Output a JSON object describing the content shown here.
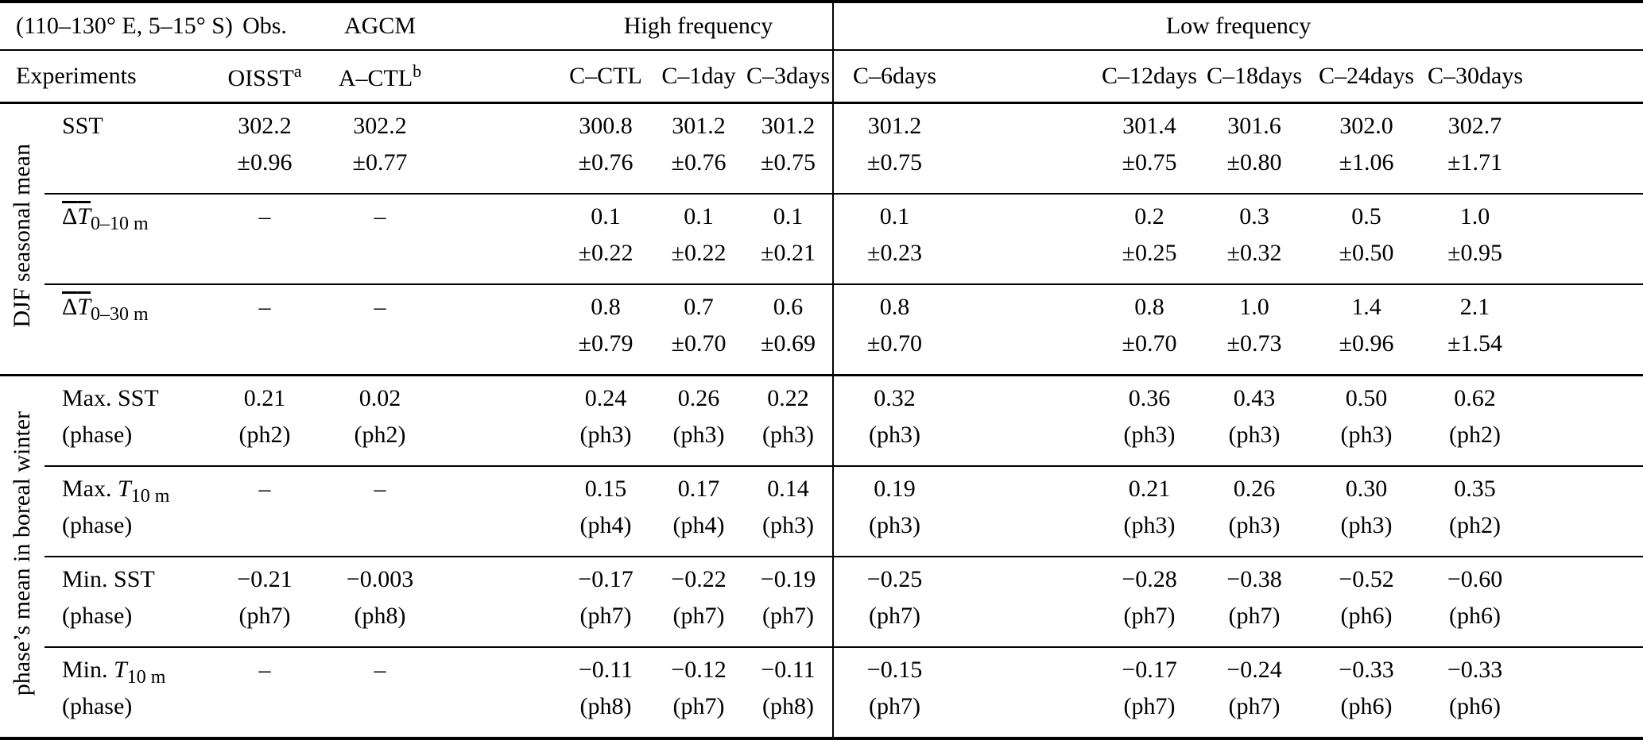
{
  "table": {
    "region_label": "(110–130° E, 5–15° S)",
    "experiments_label": "Experiments",
    "column_groups": {
      "obs": "Obs.",
      "agcm": "AGCM",
      "high_frequency": "High frequency",
      "low_frequency": "Low frequency"
    },
    "experiment_headers": [
      {
        "text": "OISST",
        "sup": "a"
      },
      {
        "text": "A–CTL",
        "sup": "b"
      },
      {
        "text": "C–CTL",
        "sup": ""
      },
      {
        "text": "C–1day",
        "sup": ""
      },
      {
        "text": "C–3days",
        "sup": ""
      },
      {
        "text": "C–6days",
        "sup": ""
      },
      {
        "text": "C–12days",
        "sup": ""
      },
      {
        "text": "C–18days",
        "sup": ""
      },
      {
        "text": "C–24days",
        "sup": ""
      },
      {
        "text": "C–30days",
        "sup": ""
      }
    ],
    "groups": [
      {
        "label": "DJF seasonal mean",
        "rows": [
          {
            "name": "sst-row",
            "label": {
              "t1": "SST",
              "l2": ""
            },
            "cells": [
              [
                "302.2",
                "±0.96"
              ],
              [
                "302.2",
                "±0.77"
              ],
              [
                "300.8",
                "±0.76"
              ],
              [
                "301.2",
                "±0.76"
              ],
              [
                "301.2",
                "±0.75"
              ],
              [
                "301.2",
                "±0.75"
              ],
              [
                "301.4",
                "±0.75"
              ],
              [
                "301.6",
                "±0.80"
              ],
              [
                "302.0",
                "±1.06"
              ],
              [
                "302.7",
                "±1.71"
              ]
            ]
          },
          {
            "name": "delta-t-0-10m-row",
            "label": {
              "ov_up": "Δ",
              "ov_it": "T",
              "sub": "0–10 m",
              "l2": ""
            },
            "cells": [
              [
                "–",
                ""
              ],
              [
                "–",
                ""
              ],
              [
                "0.1",
                "±0.22"
              ],
              [
                "0.1",
                "±0.22"
              ],
              [
                "0.1",
                "±0.21"
              ],
              [
                "0.1",
                "±0.23"
              ],
              [
                "0.2",
                "±0.25"
              ],
              [
                "0.3",
                "±0.32"
              ],
              [
                "0.5",
                "±0.50"
              ],
              [
                "1.0",
                "±0.95"
              ]
            ]
          },
          {
            "name": "delta-t-0-30m-row",
            "label": {
              "ov_up": "Δ",
              "ov_it": "T",
              "sub": "0–30 m",
              "l2": ""
            },
            "cells": [
              [
                "–",
                ""
              ],
              [
                "–",
                ""
              ],
              [
                "0.8",
                "±0.79"
              ],
              [
                "0.7",
                "±0.70"
              ],
              [
                "0.6",
                "±0.69"
              ],
              [
                "0.8",
                "±0.70"
              ],
              [
                "0.8",
                "±0.70"
              ],
              [
                "1.0",
                "±0.73"
              ],
              [
                "1.4",
                "±0.96"
              ],
              [
                "2.1",
                "±1.54"
              ]
            ]
          }
        ]
      },
      {
        "label": "phase’s mean in boreal winter",
        "rows": [
          {
            "name": "max-sst-row",
            "label": {
              "t1": "Max. SST",
              "l2": "(phase)"
            },
            "cells": [
              [
                "0.21",
                "(ph2)"
              ],
              [
                "0.02",
                "(ph2)"
              ],
              [
                "0.24",
                "(ph3)"
              ],
              [
                "0.26",
                "(ph3)"
              ],
              [
                "0.22",
                "(ph3)"
              ],
              [
                "0.32",
                "(ph3)"
              ],
              [
                "0.36",
                "(ph3)"
              ],
              [
                "0.43",
                "(ph3)"
              ],
              [
                "0.50",
                "(ph3)"
              ],
              [
                "0.62",
                "(ph2)"
              ]
            ]
          },
          {
            "name": "max-t10m-row",
            "label": {
              "t1": "Max. ",
              "it": "T",
              "sub": "10 m",
              "l2": "(phase)"
            },
            "cells": [
              [
                "–",
                ""
              ],
              [
                "–",
                ""
              ],
              [
                "0.15",
                "(ph4)"
              ],
              [
                "0.17",
                "(ph4)"
              ],
              [
                "0.14",
                "(ph3)"
              ],
              [
                "0.19",
                "(ph3)"
              ],
              [
                "0.21",
                "(ph3)"
              ],
              [
                "0.26",
                "(ph3)"
              ],
              [
                "0.30",
                "(ph3)"
              ],
              [
                "0.35",
                "(ph2)"
              ]
            ]
          },
          {
            "name": "min-sst-row",
            "label": {
              "t1": "Min. SST",
              "l2": "(phase)"
            },
            "cells": [
              [
                "−0.21",
                "(ph7)"
              ],
              [
                "−0.003",
                "(ph8)"
              ],
              [
                "−0.17",
                "(ph7)"
              ],
              [
                "−0.22",
                "(ph7)"
              ],
              [
                "−0.19",
                "(ph7)"
              ],
              [
                "−0.25",
                "(ph7)"
              ],
              [
                "−0.28",
                "(ph7)"
              ],
              [
                "−0.38",
                "(ph7)"
              ],
              [
                "−0.52",
                "(ph6)"
              ],
              [
                "−0.60",
                "(ph6)"
              ]
            ]
          },
          {
            "name": "min-t10m-row",
            "label": {
              "t1": "Min. ",
              "it": "T",
              "sub": "10 m",
              "l2": "(phase)"
            },
            "cells": [
              [
                "–",
                ""
              ],
              [
                "–",
                ""
              ],
              [
                "−0.11",
                "(ph8)"
              ],
              [
                "−0.12",
                "(ph7)"
              ],
              [
                "−0.11",
                "(ph8)"
              ],
              [
                "−0.15",
                "(ph7)"
              ],
              [
                "−0.17",
                "(ph7)"
              ],
              [
                "−0.24",
                "(ph7)"
              ],
              [
                "−0.33",
                "(ph6)"
              ],
              [
                "−0.33",
                "(ph6)"
              ]
            ]
          }
        ]
      }
    ],
    "divider_after_column": "C–3days",
    "colors": {
      "rule": "#000000",
      "background": "#ffffff",
      "text": "#000000"
    }
  }
}
